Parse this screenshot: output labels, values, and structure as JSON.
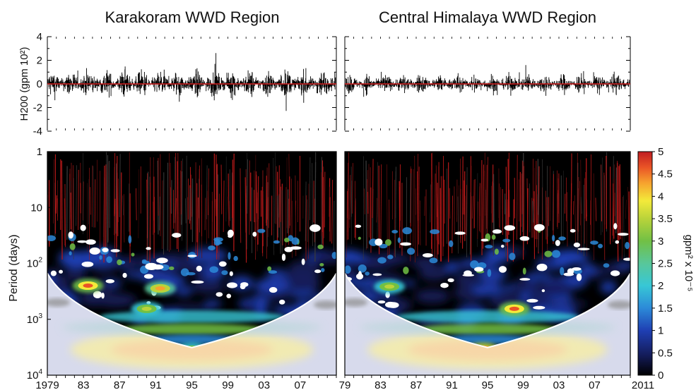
{
  "titles": {
    "left": "Karakoram WWD Region",
    "right": "Central Himalaya WWD Region"
  },
  "chart_data": [
    {
      "type": "line",
      "panel": "left-timeseries",
      "ylabel": "H200 (gpm 10²)",
      "ylim": [
        -4,
        4
      ],
      "yticks": [
        "4",
        "2",
        "0",
        "-2",
        "-4"
      ],
      "x_range": [
        1979,
        2011
      ],
      "zero_line_color": "#d62020",
      "series_color": "#000000"
    },
    {
      "type": "line",
      "panel": "right-timeseries",
      "ylim": [
        -4,
        4
      ],
      "x_range": [
        1979,
        2011
      ],
      "zero_line_color": "#d62020",
      "series_color": "#000000"
    },
    {
      "type": "heatmap",
      "panel": "left-wavelet",
      "ylabel": "Period (days)",
      "yscale": "log",
      "ylim": [
        1,
        10000
      ],
      "ytick_labels": [
        {
          "value": 1,
          "base": "1",
          "exp": ""
        },
        {
          "value": 10,
          "base": "10",
          "exp": ""
        },
        {
          "value": 100,
          "base": "10",
          "exp": "2"
        },
        {
          "value": 1000,
          "base": "10",
          "exp": "3"
        },
        {
          "value": 10000,
          "base": "10",
          "exp": "4"
        }
      ],
      "xtick_labels": [
        "1979",
        "83",
        "87",
        "91",
        "95",
        "99",
        "03",
        "07"
      ],
      "hotspots": [
        {
          "year": 1983.5,
          "period": 250,
          "power": 4.5
        },
        {
          "year": 1991.5,
          "period": 280,
          "power": 4.3
        },
        {
          "year": 1995,
          "period": 3500,
          "power": 3.8
        },
        {
          "year": 1990,
          "period": 650,
          "power": 3.0
        }
      ]
    },
    {
      "type": "heatmap",
      "panel": "right-wavelet",
      "yscale": "log",
      "ylim": [
        1,
        10000
      ],
      "xtick_labels": [
        "79",
        "83",
        "87",
        "91",
        "95",
        "99",
        "03",
        "07",
        "2011"
      ],
      "hotspots": [
        {
          "year": 1998,
          "period": 650,
          "power": 4.5
        },
        {
          "year": 1994.5,
          "period": 3500,
          "power": 5.0
        },
        {
          "year": 1984,
          "period": 260,
          "power": 3.2
        }
      ]
    },
    {
      "type": "colorbar",
      "label": "gpm² x 10⁻⁵",
      "range": [
        0,
        5
      ],
      "tick_labels": [
        "5",
        "4.5",
        "4",
        "3.5",
        "3",
        "2.5",
        "2",
        "1.5",
        "1",
        "0.5",
        "0"
      ],
      "colors": [
        "#000000",
        "#141c5a",
        "#1f3fb3",
        "#2c8ad8",
        "#37c7d6",
        "#58c79a",
        "#71c045",
        "#b9d33a",
        "#f3ea3a",
        "#f6a22e",
        "#ea5426",
        "#c01d22"
      ]
    }
  ]
}
